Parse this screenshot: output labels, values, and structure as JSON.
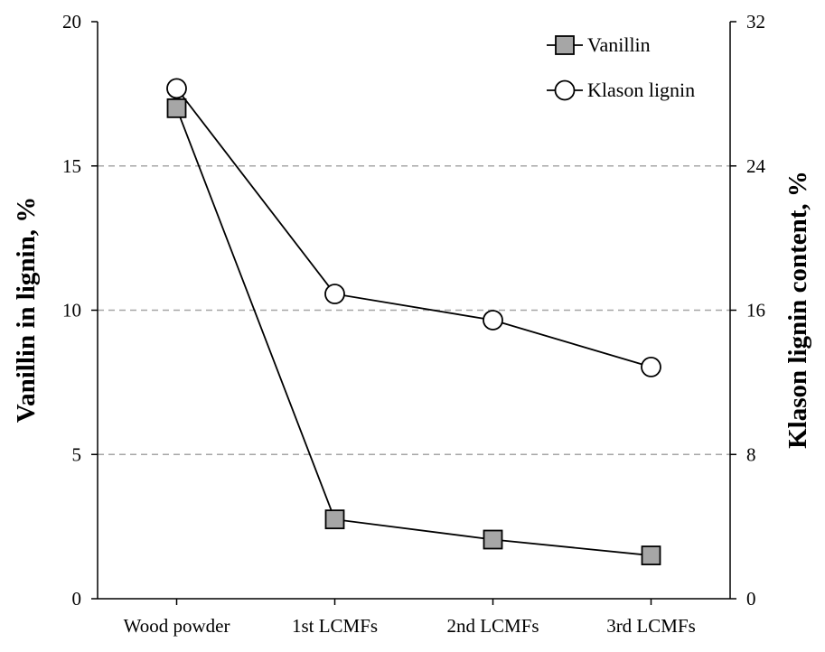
{
  "chart_data": {
    "type": "line",
    "categories": [
      "Wood powder",
      "1st LCMFs",
      "2nd LCMFs",
      "3rd LCMFs"
    ],
    "series": [
      {
        "name": "Vanillin",
        "axis": "left",
        "marker": "square",
        "marker_fill": "#a6a6a6",
        "values": [
          17.0,
          2.75,
          2.05,
          1.5
        ]
      },
      {
        "name": "Klason lignin",
        "axis": "right",
        "marker": "circle",
        "marker_fill": "#ffffff",
        "values": [
          28.3,
          16.9,
          15.45,
          12.85
        ]
      }
    ],
    "ylabel": "Vanillin in lignin, %",
    "y2label": "Klason lignin content, %",
    "ylim": [
      0,
      20
    ],
    "y2lim": [
      0,
      32
    ],
    "yticks": [
      "0",
      "5",
      "10",
      "15",
      "20"
    ],
    "y2ticks": [
      "0",
      "8",
      "16",
      "24",
      "32"
    ],
    "grid": "horizontal dashed",
    "legend_position": "top-right"
  }
}
